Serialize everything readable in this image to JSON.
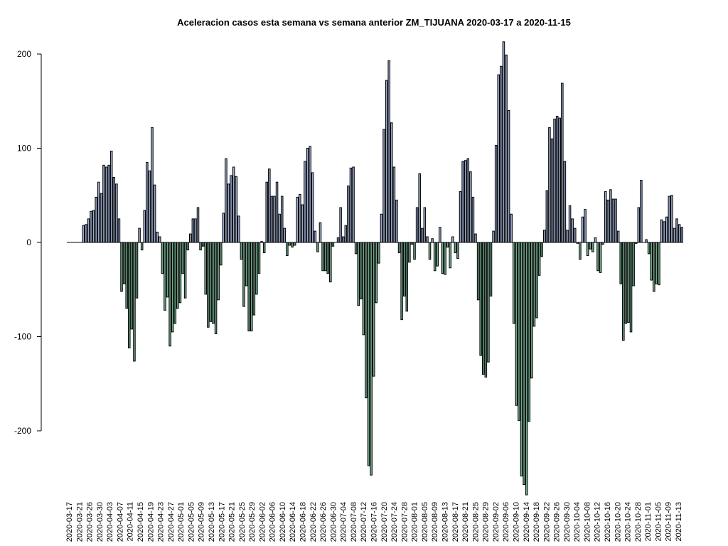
{
  "chart_data": {
    "type": "bar",
    "title": "Aceleracion casos esta semana vs semana anterior ZM_TIJUANA 2020-03-17 a 2020-11-15",
    "xlabel": "",
    "ylabel": "",
    "ylim": [
      -270,
      215
    ],
    "yticks": [
      -200,
      -100,
      0,
      100,
      200
    ],
    "start_date": "2020-03-17",
    "end_date": "2020-11-15",
    "x_tick_labels": [
      "2020-03-17",
      "2020-03-21",
      "2020-03-26",
      "2020-03-30",
      "2020-04-03",
      "2020-04-07",
      "2020-04-11",
      "2020-04-15",
      "2020-04-19",
      "2020-04-23",
      "2020-04-27",
      "2020-05-01",
      "2020-05-05",
      "2020-05-09",
      "2020-05-13",
      "2020-05-17",
      "2020-05-21",
      "2020-05-25",
      "2020-05-29",
      "2020-06-02",
      "2020-06-06",
      "2020-06-10",
      "2020-06-14",
      "2020-06-18",
      "2020-06-22",
      "2020-06-26",
      "2020-06-30",
      "2020-07-04",
      "2020-07-08",
      "2020-07-12",
      "2020-07-16",
      "2020-07-20",
      "2020-07-24",
      "2020-07-28",
      "2020-08-01",
      "2020-08-05",
      "2020-08-09",
      "2020-08-13",
      "2020-08-17",
      "2020-08-21",
      "2020-08-25",
      "2020-08-29",
      "2020-09-02",
      "2020-09-06",
      "2020-09-10",
      "2020-09-14",
      "2020-09-18",
      "2020-09-22",
      "2020-09-26",
      "2020-09-30",
      "2020-10-04",
      "2020-10-08",
      "2020-10-12",
      "2020-10-16",
      "2020-10-20",
      "2020-10-24",
      "2020-10-28",
      "2020-11-01",
      "2020-11-05",
      "2020-11-09",
      "2020-11-13"
    ],
    "positive_color": "#9aaacd",
    "negative_color": "#6fa88a",
    "grid": false,
    "legend": "none",
    "values": [
      0,
      0,
      0,
      0,
      0,
      0,
      18,
      19,
      25,
      33,
      34,
      48,
      64,
      52,
      82,
      80,
      82,
      97,
      69,
      62,
      25,
      -52,
      -44,
      -70,
      -112,
      -92,
      -126,
      -59,
      15,
      -8,
      34,
      85,
      76,
      122,
      61,
      11,
      6,
      -33,
      -72,
      -58,
      -110,
      -95,
      -86,
      -70,
      -64,
      -33,
      -59,
      -8,
      9,
      25,
      25,
      37,
      -8,
      -4,
      -55,
      -90,
      -84,
      -86,
      -97,
      -61,
      -24,
      31,
      89,
      62,
      71,
      80,
      70,
      28,
      -18,
      -68,
      -46,
      -94,
      -94,
      -77,
      -55,
      -33,
      1,
      -11,
      64,
      78,
      49,
      49,
      64,
      30,
      49,
      15,
      -14,
      -3,
      -5,
      -3,
      48,
      51,
      40,
      86,
      100,
      102,
      74,
      12,
      -10,
      21,
      -30,
      -30,
      -33,
      -42,
      -4,
      0,
      5,
      37,
      6,
      18,
      60,
      79,
      80,
      -12,
      -67,
      -60,
      -98,
      -165,
      -237,
      -247,
      -142,
      -64,
      -22,
      30,
      120,
      172,
      193,
      127,
      80,
      45,
      -11,
      -82,
      -57,
      -73,
      -21,
      -2,
      -18,
      37,
      73,
      15,
      37,
      6,
      -18,
      4,
      -30,
      -25,
      16,
      -33,
      -34,
      -5,
      -27,
      6,
      -11,
      -17,
      54,
      86,
      87,
      89,
      75,
      48,
      9,
      -61,
      -120,
      -140,
      -143,
      -127,
      -57,
      12,
      103,
      178,
      187,
      213,
      199,
      140,
      30,
      -86,
      -173,
      -189,
      -248,
      -257,
      -268,
      -190,
      -144,
      -89,
      -80,
      -35,
      -15,
      13,
      55,
      122,
      110,
      131,
      134,
      132,
      169,
      86,
      13,
      39,
      25,
      15,
      -1,
      -18,
      27,
      35,
      -14,
      -7,
      -10,
      5,
      -30,
      -32,
      -2,
      54,
      45,
      56,
      46,
      46,
      12,
      -44,
      -104,
      -86,
      -85,
      -95,
      -46,
      -1,
      37,
      66,
      0,
      3,
      -12,
      -40,
      -52,
      -44,
      -45,
      24,
      22,
      27,
      49,
      50,
      15,
      25,
      19,
      16
    ]
  }
}
